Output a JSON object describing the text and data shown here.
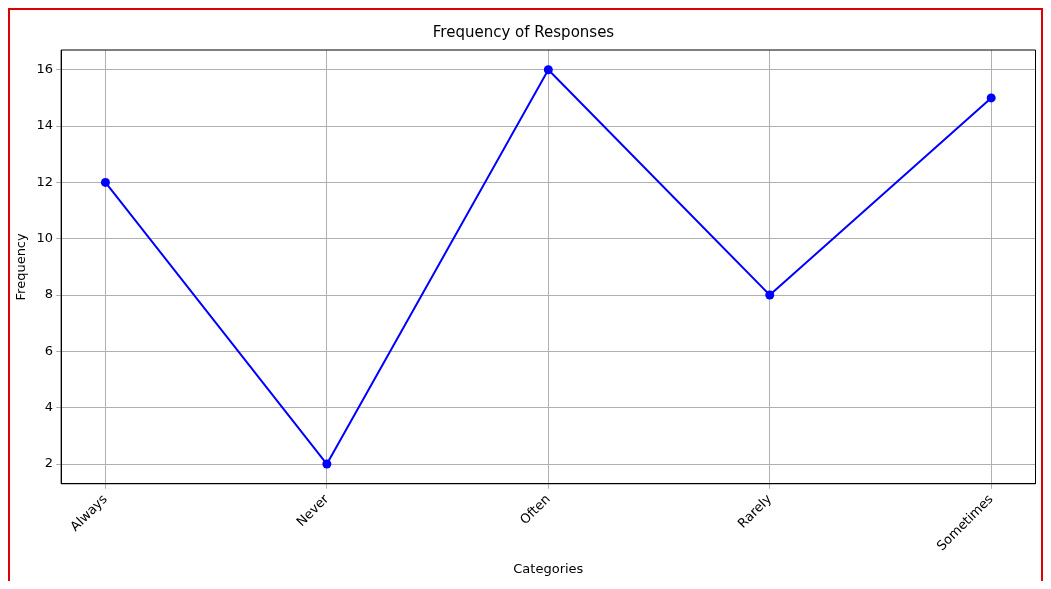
{
  "chart_data": {
    "type": "line",
    "title": "Frequency of Responses",
    "xlabel": "Categories",
    "ylabel": "Frequency",
    "categories": [
      "Always",
      "Never",
      "Often",
      "Rarely",
      "Sometimes"
    ],
    "series": [
      {
        "color": "#0000ff",
        "values": [
          12,
          2,
          16,
          8,
          15
        ]
      }
    ],
    "ylim": [
      1.3,
      16.7
    ],
    "yticks": [
      2,
      4,
      6,
      8,
      10,
      12,
      14,
      16
    ],
    "grid": true,
    "legend": false,
    "marker": "circle",
    "line_style": "solid"
  }
}
